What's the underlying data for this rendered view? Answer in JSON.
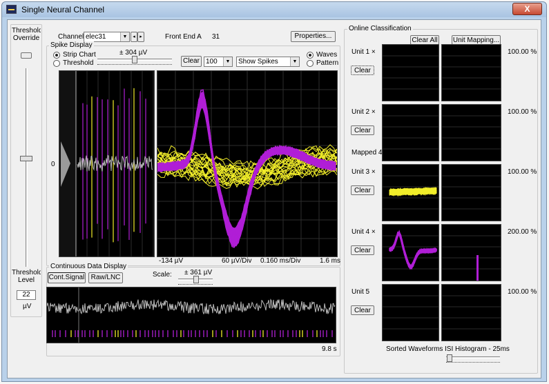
{
  "window": {
    "title": "Single Neural Channel",
    "close_glyph": "X"
  },
  "left": {
    "threshold_override_label": "Threshold Override",
    "threshold_level_label": "Threshold Level",
    "threshold_value": "22",
    "threshold_unit": "µV"
  },
  "channel": {
    "label": "Channel",
    "selected": "elec31",
    "frontend_label": "Front End A",
    "frontend_value": "31",
    "properties_button": "Properties..."
  },
  "spike_display": {
    "group_label": "Spike Display",
    "strip_chart_label": "Strip Chart",
    "threshold_label": "Threshold",
    "scale_text": "± 304 µV",
    "clear_button": "Clear",
    "count_value": "100",
    "show_mode": "Show Spikes",
    "waves_label": "Waves",
    "pattern_label": "Pattern",
    "zero_label": "0",
    "bottom_left": "-134 µV",
    "bottom_mid1": "60 µV/Div",
    "bottom_mid2": "0.160 ms/Div",
    "bottom_right": "1.6 ms"
  },
  "continuous": {
    "group_label": "Continuous Data Display",
    "cont_signal_button": "Cont.Signal",
    "raw_lnc_button": "Raw/LNC",
    "scale_label": "Scale:",
    "scale_text": "± 361 µV",
    "duration_label": "9.8 s"
  },
  "online": {
    "group_label": "Online Classification",
    "clear_all_button": "Clear All",
    "unit_mapping_button": "Unit Mapping...",
    "units": [
      {
        "name": "Unit 1 ×",
        "clear": "Clear",
        "pct": "100.00 %",
        "note": ""
      },
      {
        "name": "Unit 2 ×",
        "clear": "Clear",
        "pct": "100.00 %",
        "note": "Mapped 4"
      },
      {
        "name": "Unit 3 ×",
        "clear": "Clear",
        "pct": "100.00 %",
        "note": ""
      },
      {
        "name": "Unit 4 ×",
        "clear": "Clear",
        "pct": "200.00 %",
        "note": ""
      },
      {
        "name": "Unit 5",
        "clear": "Clear",
        "pct": "100.00 %",
        "note": ""
      }
    ],
    "sorted_label": "Sorted Waveforms",
    "isi_label": "ISI Histogram - 25ms"
  },
  "colors": {
    "purple": "#b01ed6",
    "yellow": "#f2ee2a",
    "gray": "#bcbcbc"
  }
}
